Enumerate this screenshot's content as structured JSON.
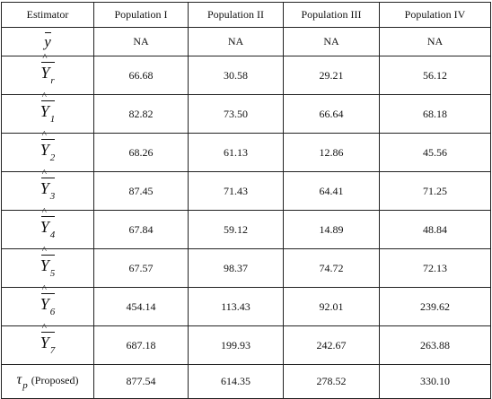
{
  "table": {
    "headers": [
      "Estimator",
      "Population I",
      "Population II",
      "Population III",
      "Population IV"
    ],
    "ybar": {
      "symbol": "y",
      "values": [
        "NA",
        "NA",
        "NA",
        "NA"
      ]
    },
    "rows": [
      {
        "symbol": "Y",
        "sub": "r",
        "values": [
          "66.68",
          "30.58",
          "29.21",
          "56.12"
        ]
      },
      {
        "symbol": "Y",
        "sub": "1",
        "values": [
          "82.82",
          "73.50",
          "66.64",
          "68.18"
        ]
      },
      {
        "symbol": "Y",
        "sub": "2",
        "values": [
          "68.26",
          "61.13",
          "12.86",
          "45.56"
        ]
      },
      {
        "symbol": "Y",
        "sub": "3",
        "values": [
          "87.45",
          "71.43",
          "64.41",
          "71.25"
        ]
      },
      {
        "symbol": "Y",
        "sub": "4",
        "values": [
          "67.84",
          "59.12",
          "14.89",
          "48.84"
        ]
      },
      {
        "symbol": "Y",
        "sub": "5",
        "values": [
          "67.57",
          "98.37",
          "74.72",
          "72.13"
        ]
      },
      {
        "symbol": "Y",
        "sub": "6",
        "values": [
          "454.14",
          "113.43",
          "92.01",
          "239.62"
        ]
      },
      {
        "symbol": "Y",
        "sub": "7",
        "values": [
          "687.18",
          "199.93",
          "242.67",
          "263.88"
        ]
      }
    ],
    "proposed": {
      "symbol": "τ",
      "sub": "p",
      "label": "(Proposed)",
      "values": [
        "877.54",
        "614.35",
        "278.52",
        "330.10"
      ]
    }
  }
}
